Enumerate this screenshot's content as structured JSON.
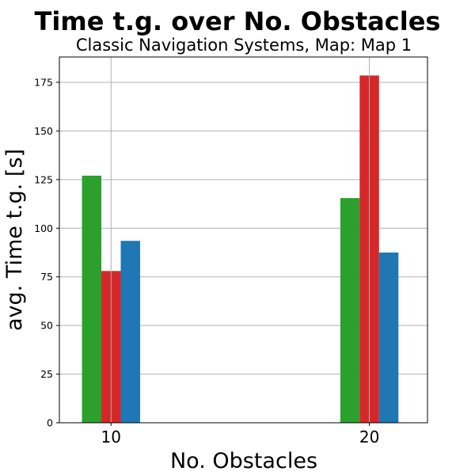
{
  "chart_data": {
    "type": "bar",
    "title": "Time t.g. over No. Obstacles",
    "subtitle": "Classic Navigation Systems, Map: Map 1",
    "xlabel": "No. Obstacles",
    "ylabel": "avg. Time t.g. [s]",
    "categories": [
      "10",
      "20"
    ],
    "x": [
      10,
      20
    ],
    "xlim": [
      8.0,
      22.25
    ],
    "ylim": [
      0,
      188
    ],
    "yticks": [
      0,
      25,
      50,
      75,
      100,
      125,
      150,
      175
    ],
    "grid": true,
    "legend": null,
    "series": [
      {
        "color": "#2ca02c",
        "values": [
          127,
          115.5
        ]
      },
      {
        "color": "#d62728",
        "values": [
          78,
          178.5
        ]
      },
      {
        "color": "#1f77b4",
        "values": [
          93.5,
          87.5
        ]
      }
    ]
  }
}
